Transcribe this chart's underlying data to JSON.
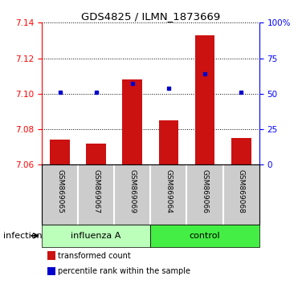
{
  "title": "GDS4825 / ILMN_1873669",
  "samples": [
    "GSM869065",
    "GSM869067",
    "GSM869069",
    "GSM869064",
    "GSM869066",
    "GSM869068"
  ],
  "red_values": [
    7.074,
    7.072,
    7.108,
    7.085,
    7.133,
    7.075
  ],
  "blue_values": [
    7.101,
    7.101,
    7.106,
    7.103,
    7.111,
    7.101
  ],
  "y_min": 7.06,
  "y_max": 7.14,
  "y_ticks": [
    7.06,
    7.08,
    7.1,
    7.12,
    7.14
  ],
  "right_y_ticks": [
    0,
    25,
    50,
    75,
    100
  ],
  "right_y_labels": [
    "0",
    "25",
    "50",
    "75",
    "100%"
  ],
  "groups": [
    {
      "label": "influenza A",
      "start": 0,
      "end": 3,
      "color": "#bbffbb"
    },
    {
      "label": "control",
      "start": 3,
      "end": 6,
      "color": "#44ee44"
    }
  ],
  "group_label": "infection",
  "bar_color": "#cc1111",
  "marker_color": "#0000cc",
  "bar_width": 0.55,
  "baseline": 7.06,
  "sample_box_color": "#cccccc",
  "legend_items": [
    {
      "color": "#cc1111",
      "label": "transformed count"
    },
    {
      "color": "#0000cc",
      "label": "percentile rank within the sample"
    }
  ]
}
